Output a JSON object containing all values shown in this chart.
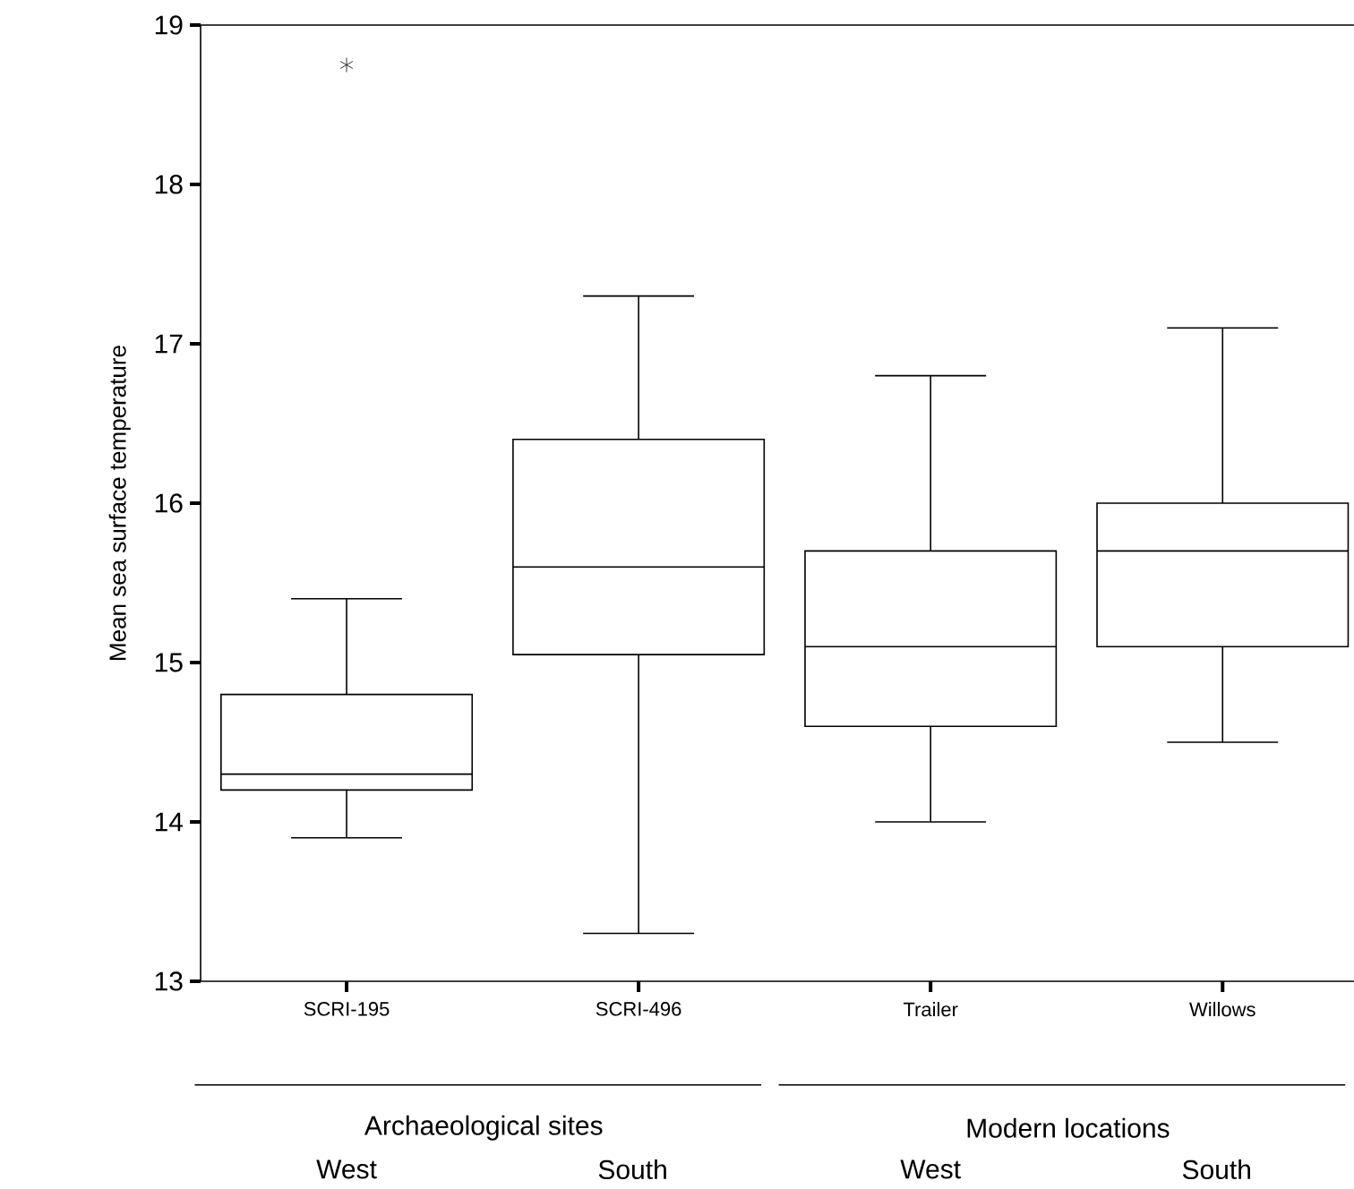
{
  "chart_data": {
    "type": "box",
    "ylabel": "Mean sea surface temperature",
    "categories": [
      "SCRI-195",
      "SCRI-496",
      "Trailer",
      "Willows"
    ],
    "boxes": [
      {
        "low": 13.9,
        "q1": 14.2,
        "median": 14.3,
        "q3": 14.8,
        "high": 15.4,
        "outliers": [
          18.75
        ]
      },
      {
        "low": 13.3,
        "q1": 15.05,
        "median": 15.6,
        "q3": 16.4,
        "high": 17.3
      },
      {
        "low": 14.0,
        "q1": 14.6,
        "median": 15.1,
        "q3": 15.7,
        "high": 16.8
      },
      {
        "low": 14.5,
        "q1": 15.1,
        "median": 15.7,
        "q3": 16.0,
        "high": 17.1
      }
    ],
    "ylim": [
      13,
      19
    ],
    "yticks": [
      13,
      14,
      15,
      16,
      17,
      18,
      19
    ],
    "annotations": [
      "Archaeological sites",
      "West",
      "South",
      "Modern locations",
      "West",
      "South"
    ]
  }
}
